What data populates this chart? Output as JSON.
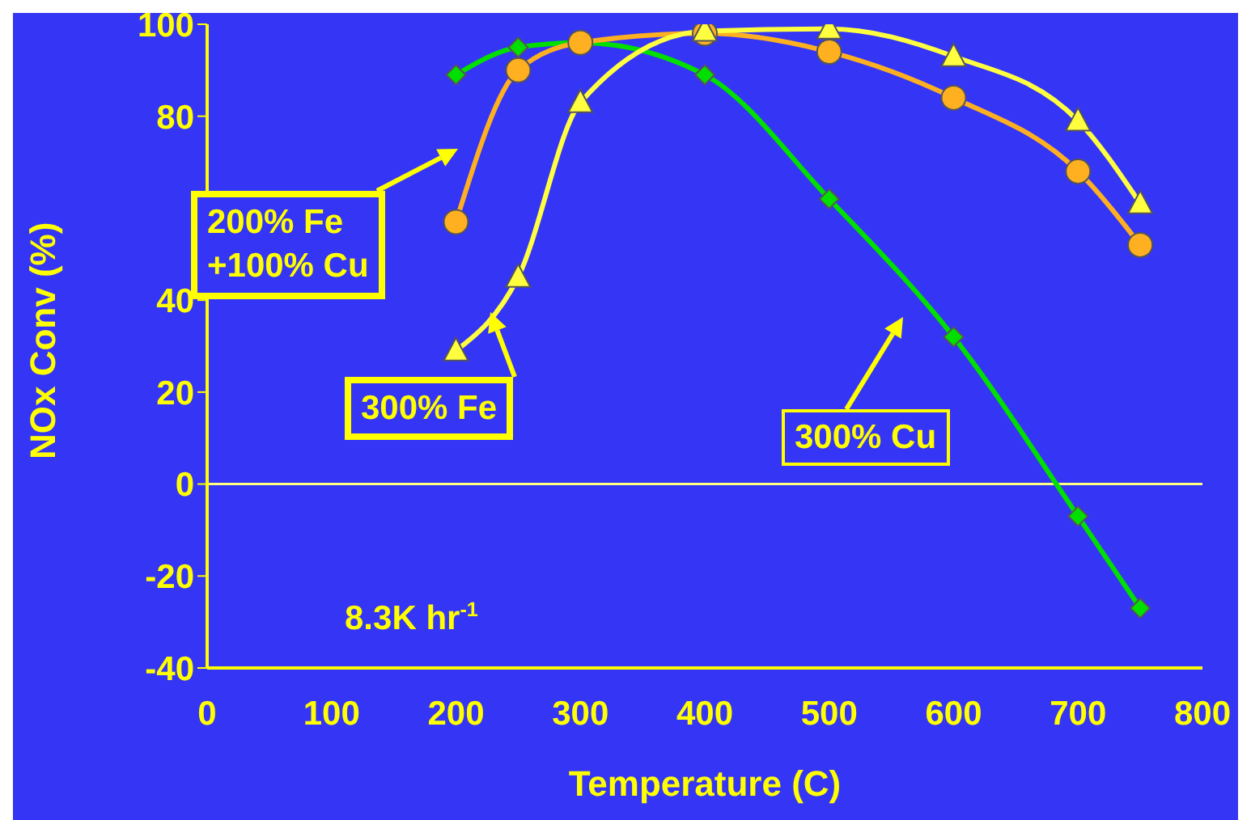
{
  "chart_data": {
    "type": "line",
    "xlabel": "Temperature (C)",
    "ylabel": "NOx Conv (%)",
    "x": [
      200,
      250,
      300,
      400,
      500,
      600,
      700,
      750
    ],
    "series": [
      {
        "name": "300% Cu",
        "color": "#00e000",
        "marker": "diamond",
        "values": [
          89,
          95,
          96,
          89,
          62,
          32,
          -7,
          -27
        ]
      },
      {
        "name": "200% Fe\n+100% Cu",
        "color": "#ffb020",
        "marker": "circle",
        "values": [
          57,
          90,
          96,
          98,
          94,
          84,
          68,
          52
        ]
      },
      {
        "name": "300% Fe",
        "color": "#ffff40",
        "marker": "triangle",
        "values": [
          29,
          45,
          83,
          98.5,
          99,
          93,
          79,
          61
        ]
      }
    ],
    "xlim": [
      0,
      800
    ],
    "xticks": [
      0,
      100,
      200,
      300,
      400,
      500,
      600,
      700,
      800
    ],
    "ylim": [
      -40,
      100
    ],
    "yticks": [
      -40,
      -20,
      0,
      20,
      40,
      {
        "value": 60,
        "label": null
      },
      80,
      100
    ],
    "grid": false,
    "ref_lines": [
      {
        "axis": "y",
        "value": 0,
        "color": "#ffff80"
      }
    ],
    "annotations": [
      "8.3K hr$^{-1}$"
    ]
  }
}
